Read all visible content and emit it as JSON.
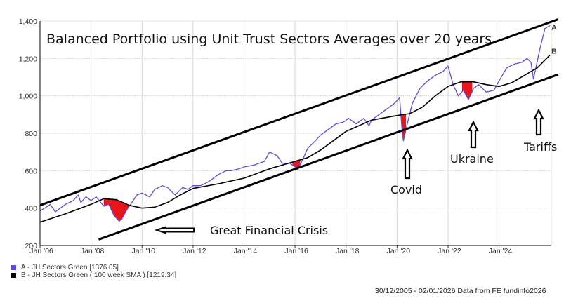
{
  "chart_data": {
    "type": "line",
    "title": "Balanced Portfolio using Unit Trust Sectors Averages over 20 years",
    "xlabel": "",
    "ylabel": "",
    "xlim": [
      2006.0,
      2026.05
    ],
    "ylim": [
      200,
      1400
    ],
    "grid": true,
    "y_ticks": [
      "200",
      "400",
      "600",
      "800",
      "1,000",
      "1,200",
      "1,400"
    ],
    "y_tick_values": [
      200,
      400,
      600,
      800,
      1000,
      1200,
      1400
    ],
    "x_ticks": [
      "Jan '06",
      "Jan '08",
      "Jan '10",
      "Jan '12",
      "Jan '14",
      "Jan '16",
      "Jan '18",
      "Jan '20",
      "Jan '22",
      "Jan '24"
    ],
    "x_tick_values": [
      2006,
      2008,
      2010,
      2012,
      2014,
      2016,
      2018,
      2020,
      2022,
      2024
    ],
    "series": [
      {
        "name": "A - JH Sectors Green [1376.05]",
        "end_label": "A",
        "color": "#5b4fd6",
        "x": [
          2006.0,
          2006.3,
          2006.4,
          2006.6,
          2007.0,
          2007.3,
          2007.5,
          2007.6,
          2007.8,
          2008.0,
          2008.2,
          2008.5,
          2008.7,
          2008.9,
          2009.1,
          2009.2,
          2009.4,
          2009.6,
          2009.8,
          2010.0,
          2010.3,
          2010.5,
          2010.8,
          2011.0,
          2011.3,
          2011.6,
          2011.8,
          2012.0,
          2012.3,
          2012.6,
          2013.0,
          2013.3,
          2013.5,
          2013.8,
          2014.0,
          2014.4,
          2014.8,
          2015.0,
          2015.3,
          2015.5,
          2015.8,
          2016.0,
          2016.1,
          2016.3,
          2016.5,
          2016.8,
          2017.0,
          2017.3,
          2017.6,
          2017.9,
          2018.1,
          2018.4,
          2018.7,
          2018.9,
          2019.0,
          2019.3,
          2019.6,
          2019.9,
          2020.1,
          2020.2,
          2020.25,
          2020.4,
          2020.6,
          2020.9,
          2021.2,
          2021.5,
          2021.8,
          2022.0,
          2022.2,
          2022.4,
          2022.6,
          2022.8,
          2023.0,
          2023.2,
          2023.5,
          2023.8,
          2024.0,
          2024.3,
          2024.6,
          2024.9,
          2025.1,
          2025.25,
          2025.35,
          2025.6,
          2025.8,
          2026.0
        ],
        "values": [
          385,
          410,
          420,
          380,
          420,
          440,
          470,
          430,
          460,
          440,
          460,
          410,
          420,
          360,
          330,
          340,
          390,
          430,
          470,
          480,
          460,
          500,
          520,
          510,
          470,
          510,
          500,
          520,
          520,
          540,
          580,
          600,
          600,
          610,
          620,
          630,
          650,
          700,
          680,
          640,
          640,
          620,
          605,
          660,
          720,
          760,
          790,
          820,
          850,
          860,
          880,
          850,
          880,
          840,
          870,
          900,
          930,
          960,
          990,
          810,
          760,
          850,
          960,
          1040,
          1080,
          1110,
          1130,
          1160,
          1060,
          1000,
          1030,
          980,
          1040,
          1060,
          1020,
          1030,
          1080,
          1150,
          1170,
          1180,
          1200,
          1180,
          1090,
          1250,
          1360,
          1376
        ]
      },
      {
        "name": "B - JH Sectors Green ( 100 week SMA ) [1219.34]",
        "end_label": "B",
        "color": "#000000",
        "x": [
          2006.0,
          2007.0,
          2008.0,
          2008.5,
          2009.0,
          2009.5,
          2010.0,
          2010.5,
          2011.0,
          2011.5,
          2012.0,
          2013.0,
          2014.0,
          2015.0,
          2016.0,
          2016.5,
          2017.0,
          2017.5,
          2018.0,
          2018.5,
          2019.0,
          2020.0,
          2020.5,
          2021.0,
          2021.5,
          2022.0,
          2022.5,
          2023.0,
          2023.5,
          2024.0,
          2024.5,
          2025.0,
          2025.5,
          2026.0
        ],
        "values": [
          325,
          370,
          420,
          450,
          445,
          415,
          400,
          405,
          430,
          470,
          505,
          530,
          560,
          610,
          650,
          670,
          710,
          760,
          810,
          840,
          870,
          895,
          905,
          940,
          1000,
          1050,
          1075,
          1075,
          1060,
          1050,
          1070,
          1110,
          1150,
          1219
        ]
      }
    ],
    "trend_channel": [
      {
        "name": "upper",
        "x": [
          2006.0,
          2026.05
        ],
        "values": [
          415,
          1395
        ]
      },
      {
        "name": "lower",
        "x": [
          2008.3,
          2026.05
        ],
        "values": [
          232,
          1100
        ]
      }
    ],
    "annotations": [
      {
        "text": "Great Financial Crisis",
        "arrow": "left"
      },
      {
        "text": "Covid",
        "arrow": "up"
      },
      {
        "text": "Ukraine",
        "arrow": "up"
      },
      {
        "text": "Tariffs",
        "arrow": "up"
      }
    ],
    "drawdowns": [
      {
        "label": "gfc",
        "x_start": 2008.5,
        "x_end": 2010.0
      },
      {
        "label": "2016",
        "x_start": 2015.9,
        "x_end": 2016.2
      },
      {
        "label": "covid",
        "x_start": 2020.15,
        "x_end": 2020.35
      },
      {
        "label": "ukraine",
        "x_start": 2022.55,
        "x_end": 2022.95
      }
    ],
    "legend_position": "bottom-left",
    "fill_color": "#e8161b",
    "footer": "30/12/2005 - 02/01/2026 Data from FE fundinfo2026"
  }
}
